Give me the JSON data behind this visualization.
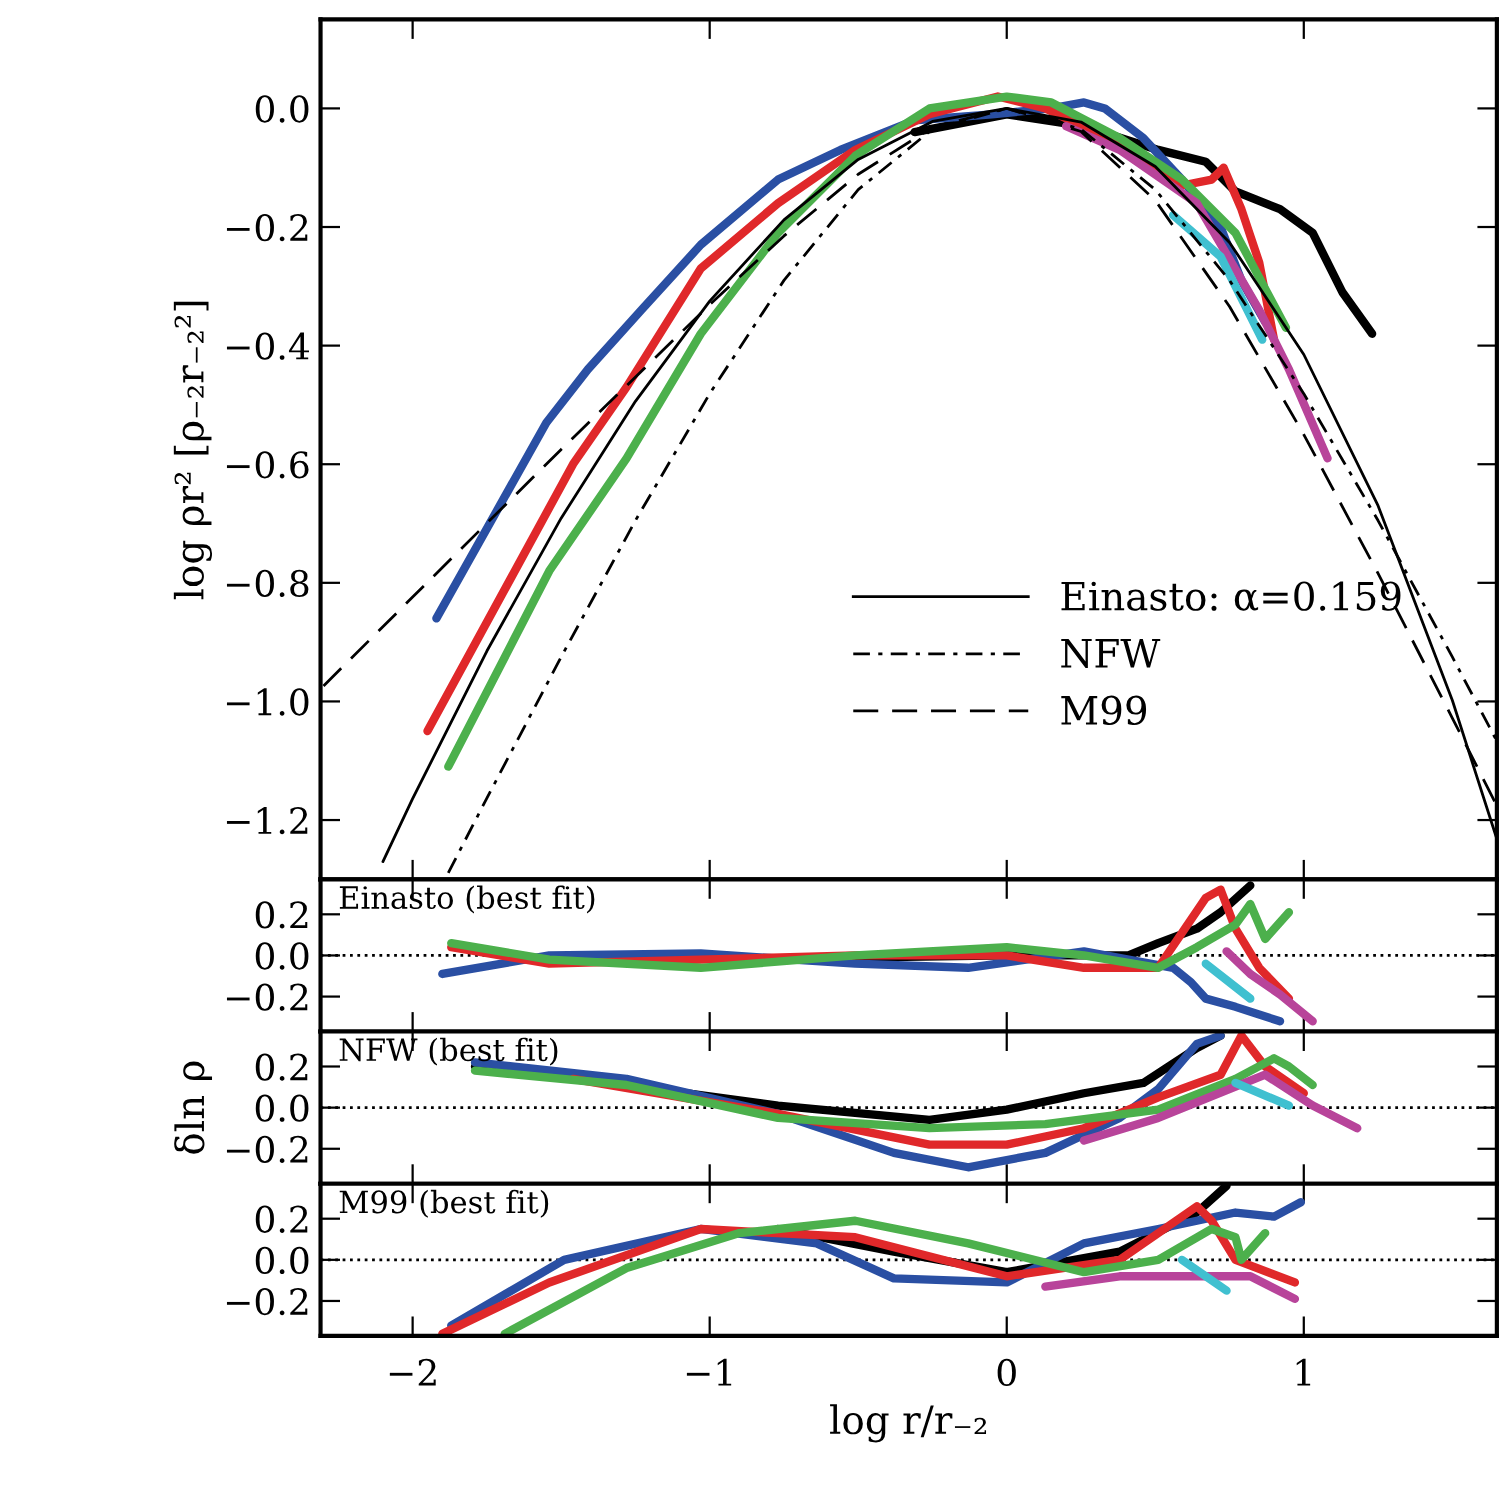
{
  "chart_data": [
    {
      "type": "line",
      "ylabel": "log ρr² [ρ₋₂r₋₂²]",
      "xlim": [
        -2.31,
        1.65
      ],
      "ylim": [
        -1.3,
        0.15
      ],
      "xticks": [
        {
          "value": -2,
          "label": null
        },
        {
          "value": -1,
          "label": null
        },
        {
          "value": 0,
          "label": null
        },
        {
          "value": 1,
          "label": null
        }
      ],
      "yticks": [
        {
          "value": 0,
          "label": "0.0"
        },
        {
          "value": -0.2,
          "label": "−0.2"
        },
        {
          "value": -0.4,
          "label": "−0.4"
        },
        {
          "value": -0.6,
          "label": "−0.6"
        },
        {
          "value": -0.8,
          "label": "−0.8"
        },
        {
          "value": -1.0,
          "label": "−1.0"
        },
        {
          "value": -1.2,
          "label": "−1.2"
        }
      ],
      "tick_labels": "y",
      "legend": "bottom right",
      "grid": false,
      "series": [
        {
          "color": "#000000",
          "x": [
            -0.31,
            0,
            0.26,
            0.51,
            0.67,
            0.77,
            0.92,
            1.03,
            1.13,
            1.23
          ],
          "values": [
            -0.04,
            -0.01,
            -0.03,
            -0.07,
            -0.09,
            -0.14,
            -0.17,
            -0.21,
            -0.31,
            -0.38
          ]
        },
        {
          "color": "#2a4fa3",
          "x": [
            -1.92,
            -1.55,
            -1.41,
            -1.23,
            -1.03,
            -0.77,
            -0.56,
            -0.31,
            -0.05,
            0.15,
            0.26,
            0.33,
            0.46,
            0.59,
            0.72,
            0.79,
            0.87
          ],
          "values": [
            -0.86,
            -0.53,
            -0.44,
            -0.34,
            -0.23,
            -0.12,
            -0.07,
            -0.02,
            -0.01,
            0,
            0.01,
            0,
            -0.05,
            -0.12,
            -0.2,
            -0.29,
            -0.36
          ]
        },
        {
          "color": "#e0282a",
          "x": [
            -1.95,
            -1.46,
            -1.28,
            -1.03,
            -0.77,
            -0.51,
            -0.26,
            -0.03,
            0.13,
            0.38,
            0.59,
            0.69,
            0.73,
            0.79,
            0.85,
            0.9
          ],
          "values": [
            -1.05,
            -0.6,
            -0.47,
            -0.27,
            -0.16,
            -0.07,
            -0.01,
            0.02,
            0,
            -0.06,
            -0.13,
            -0.12,
            -0.1,
            -0.17,
            -0.26,
            -0.39
          ]
        },
        {
          "color": "#4cb04c",
          "x": [
            -1.88,
            -1.54,
            -1.28,
            -1.03,
            -0.77,
            -0.51,
            -0.26,
            0,
            0.15,
            0.38,
            0.59,
            0.77,
            0.94
          ],
          "values": [
            -1.11,
            -0.78,
            -0.59,
            -0.38,
            -0.21,
            -0.08,
            0,
            0.02,
            0.01,
            -0.05,
            -0.12,
            -0.21,
            -0.37
          ]
        },
        {
          "color": "#b8449a",
          "x": [
            0.2,
            0.38,
            0.64,
            0.85,
            0.95,
            1.08
          ],
          "values": [
            -0.03,
            -0.07,
            -0.16,
            -0.34,
            -0.44,
            -0.59
          ]
        },
        {
          "color": "#40c0d0",
          "x": [
            0.56,
            0.72,
            0.86
          ],
          "values": [
            -0.18,
            -0.25,
            -0.39
          ]
        },
        {
          "name": "Einasto: α=0.159",
          "color": "#000000",
          "line_style": "solid",
          "x": [
            -2.1,
            -2.0,
            -1.75,
            -1.5,
            -1.25,
            -1.0,
            -0.75,
            -0.5,
            -0.25,
            0,
            0.25,
            0.5,
            0.75,
            1.0,
            1.25,
            1.5,
            1.65
          ],
          "values": [
            -1.27,
            -1.164,
            -0.915,
            -0.691,
            -0.494,
            -0.325,
            -0.188,
            -0.086,
            -0.022,
            0,
            -0.023,
            -0.098,
            -0.226,
            -0.415,
            -0.67,
            -0.998,
            -1.232
          ]
        },
        {
          "name": "NFW",
          "color": "#000000",
          "line_style": "dashdot",
          "x": [
            -1.88,
            -1.75,
            -1.5,
            -1.25,
            -1.0,
            -0.75,
            -0.5,
            -0.25,
            0,
            0.25,
            0.5,
            0.75,
            1.0,
            1.25,
            1.5,
            1.65
          ],
          "values": [
            -1.289,
            -1.163,
            -0.925,
            -0.695,
            -0.481,
            -0.29,
            -0.137,
            -0.035,
            0,
            -0.035,
            -0.137,
            -0.29,
            -0.481,
            -0.695,
            -0.925,
            -1.067
          ]
        },
        {
          "name": "M99",
          "color": "#000000",
          "line_style": "dashed",
          "x": [
            -2.3,
            -2.0,
            -1.5,
            -1.0,
            -0.75,
            -0.5,
            -0.25,
            0,
            0.25,
            0.5,
            0.75,
            1.0,
            1.25,
            1.5,
            1.65
          ],
          "values": [
            -0.974,
            -0.824,
            -0.575,
            -0.331,
            -0.215,
            -0.111,
            -0.032,
            0,
            -0.039,
            -0.155,
            -0.334,
            -0.55,
            -0.784,
            -1.028,
            -1.176
          ]
        }
      ]
    },
    {
      "type": "line",
      "annotations": [
        "Einasto (best fit)"
      ],
      "xlim": [
        -2.31,
        1.65
      ],
      "ylim": [
        -0.37,
        0.37
      ],
      "xticks": [
        {
          "value": -2,
          "label": null
        },
        {
          "value": -1,
          "label": null
        },
        {
          "value": 0,
          "label": null
        },
        {
          "value": 1,
          "label": null
        }
      ],
      "yticks": [
        {
          "value": 0.2,
          "label": "0.2"
        },
        {
          "value": 0,
          "label": "0.0"
        },
        {
          "value": -0.2,
          "label": "−0.2"
        }
      ],
      "tick_labels": "y",
      "ref_lines": [
        {
          "axis": "y",
          "value": 0,
          "line_style": "dotted",
          "color": "#000000"
        }
      ],
      "series": [
        {
          "color": "#000000",
          "x": [
            -0.51,
            0,
            0.41,
            0.51,
            0.64,
            0.72,
            0.82
          ],
          "values": [
            -0.01,
            0,
            0,
            0.06,
            0.13,
            0.21,
            0.34
          ]
        },
        {
          "color": "#2a4fa3",
          "x": [
            -1.9,
            -1.54,
            -1.03,
            -0.51,
            -0.13,
            0.26,
            0.41,
            0.56,
            0.62,
            0.67,
            0.77,
            0.92
          ],
          "values": [
            -0.09,
            0,
            0.01,
            -0.04,
            -0.06,
            0.02,
            -0.02,
            -0.06,
            -0.13,
            -0.21,
            -0.25,
            -0.32
          ]
        },
        {
          "color": "#e0282a",
          "x": [
            -1.87,
            -1.54,
            -1.03,
            -0.51,
            0,
            0.26,
            0.51,
            0.67,
            0.72,
            0.77,
            0.85,
            0.95
          ],
          "values": [
            0.04,
            -0.04,
            -0.02,
            0,
            0,
            -0.06,
            -0.06,
            0.28,
            0.32,
            0.13,
            -0.06,
            -0.21
          ]
        },
        {
          "color": "#4cb04c",
          "x": [
            -1.87,
            -1.54,
            -1.03,
            -0.51,
            0,
            0.26,
            0.51,
            0.64,
            0.77,
            0.82,
            0.87,
            0.95
          ],
          "values": [
            0.06,
            -0.02,
            -0.06,
            0,
            0.04,
            0,
            -0.06,
            0.04,
            0.15,
            0.25,
            0.08,
            0.21
          ]
        },
        {
          "color": "#b8449a",
          "x": [
            0.74,
            0.82,
            0.92,
            1.03
          ],
          "values": [
            0.02,
            -0.09,
            -0.19,
            -0.32
          ]
        },
        {
          "color": "#40c0d0",
          "x": [
            0.67,
            0.82
          ],
          "values": [
            -0.04,
            -0.21
          ]
        }
      ]
    },
    {
      "type": "line",
      "ylabel": "δln ρ",
      "annotations": [
        "NFW (best fit)"
      ],
      "xlim": [
        -2.31,
        1.65
      ],
      "ylim": [
        -0.37,
        0.37
      ],
      "xticks": [
        {
          "value": -2,
          "label": null
        },
        {
          "value": -1,
          "label": null
        },
        {
          "value": 0,
          "label": null
        },
        {
          "value": 1,
          "label": null
        }
      ],
      "yticks": [
        {
          "value": 0.2,
          "label": "0.2"
        },
        {
          "value": 0,
          "label": "0.0"
        },
        {
          "value": -0.2,
          "label": "−0.2"
        }
      ],
      "tick_labels": "y",
      "ref_lines": [
        {
          "axis": "y",
          "value": 0,
          "line_style": "dotted",
          "color": "#000000"
        }
      ],
      "series": [
        {
          "color": "#000000",
          "x": [
            -1.79,
            -1.28,
            -0.77,
            -0.26,
            0,
            0.26,
            0.46,
            0.64,
            0.72
          ],
          "values": [
            0.2,
            0.11,
            0.01,
            -0.06,
            -0.01,
            0.07,
            0.12,
            0.29,
            0.35
          ]
        },
        {
          "color": "#2a4fa3",
          "x": [
            -1.79,
            -1.28,
            -0.77,
            -0.38,
            -0.13,
            0.13,
            0.38,
            0.51,
            0.64,
            0.72
          ],
          "values": [
            0.22,
            0.14,
            -0.03,
            -0.22,
            -0.29,
            -0.22,
            -0.05,
            0.09,
            0.31,
            0.35
          ]
        },
        {
          "color": "#e0282a",
          "x": [
            -1.46,
            -0.77,
            -0.26,
            0,
            0.26,
            0.51,
            0.72,
            0.79,
            0.87,
            1.0
          ],
          "values": [
            0.14,
            -0.03,
            -0.18,
            -0.18,
            -0.1,
            0.05,
            0.16,
            0.35,
            0.2,
            0.07
          ]
        },
        {
          "color": "#4cb04c",
          "x": [
            -1.79,
            -1.28,
            -0.77,
            -0.26,
            0.13,
            0.51,
            0.77,
            0.9,
            0.95,
            1.03
          ],
          "values": [
            0.18,
            0.11,
            -0.05,
            -0.1,
            -0.08,
            -0.01,
            0.14,
            0.24,
            0.2,
            0.11
          ]
        },
        {
          "color": "#b8449a",
          "x": [
            0.26,
            0.51,
            0.87,
            1.03,
            1.18
          ],
          "values": [
            -0.16,
            -0.05,
            0.16,
            0.01,
            -0.1
          ]
        },
        {
          "color": "#40c0d0",
          "x": [
            0.77,
            0.95
          ],
          "values": [
            0.12,
            0.01
          ]
        }
      ]
    },
    {
      "type": "line",
      "xlabel": "log r/r₋₂",
      "annotations": [
        "M99 (best fit)"
      ],
      "xlim": [
        -2.31,
        1.65
      ],
      "ylim": [
        -0.37,
        0.37
      ],
      "xticks": [
        {
          "value": -2,
          "label": "−2"
        },
        {
          "value": -1,
          "label": "−1"
        },
        {
          "value": 0,
          "label": "0"
        },
        {
          "value": 1,
          "label": "1"
        }
      ],
      "yticks": [
        {
          "value": 0.2,
          "label": "0.2"
        },
        {
          "value": 0,
          "label": "0.0"
        },
        {
          "value": -0.2,
          "label": "−0.2"
        }
      ],
      "ref_lines": [
        {
          "axis": "y",
          "value": 0,
          "line_style": "dotted",
          "color": "#000000"
        }
      ],
      "series": [
        {
          "color": "#000000",
          "x": [
            -0.77,
            -0.38,
            0,
            0.38,
            0.64,
            0.74
          ],
          "values": [
            0.15,
            0.04,
            -0.06,
            0.04,
            0.23,
            0.36
          ]
        },
        {
          "color": "#2a4fa3",
          "x": [
            -1.87,
            -1.49,
            -1.03,
            -0.64,
            -0.38,
            0,
            0.26,
            0.51,
            0.77,
            0.9,
            0.99
          ],
          "values": [
            -0.32,
            0,
            0.15,
            0.08,
            -0.09,
            -0.11,
            0.08,
            0.15,
            0.23,
            0.21,
            0.28
          ]
        },
        {
          "color": "#e0282a",
          "x": [
            -1.9,
            -1.54,
            -1.03,
            -0.51,
            0,
            0.38,
            0.64,
            0.69,
            0.77,
            0.97
          ],
          "values": [
            -0.36,
            -0.11,
            0.15,
            0.11,
            -0.08,
            0,
            0.26,
            0.19,
            0,
            -0.11
          ]
        },
        {
          "color": "#4cb04c",
          "x": [
            -1.69,
            -1.28,
            -0.9,
            -0.51,
            -0.13,
            0.26,
            0.51,
            0.69,
            0.77,
            0.79,
            0.87
          ],
          "values": [
            -0.36,
            -0.04,
            0.13,
            0.19,
            0.08,
            -0.06,
            0,
            0.15,
            0.11,
            0,
            0.13
          ]
        },
        {
          "color": "#b8449a",
          "x": [
            0.13,
            0.38,
            0.82,
            0.97
          ],
          "values": [
            -0.13,
            -0.08,
            -0.08,
            -0.19
          ]
        },
        {
          "color": "#40c0d0",
          "x": [
            0.59,
            0.74
          ],
          "values": [
            0,
            -0.15
          ]
        }
      ]
    }
  ]
}
